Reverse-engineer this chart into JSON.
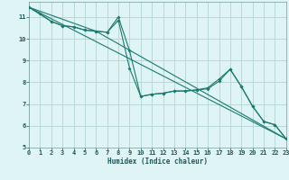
{
  "background_color": "#dff4f4",
  "grid_color": "#b8d8d8",
  "line_color": "#1a7a6e",
  "xlabel": "Humidex (Indice chaleur)",
  "xlim": [
    0,
    23
  ],
  "ylim": [
    5,
    11.7
  ],
  "yticks": [
    5,
    6,
    7,
    8,
    9,
    10,
    11
  ],
  "xticks": [
    0,
    1,
    2,
    3,
    4,
    5,
    6,
    7,
    8,
    9,
    10,
    11,
    12,
    13,
    14,
    15,
    16,
    17,
    18,
    19,
    20,
    21,
    22,
    23
  ],
  "series": [
    {
      "x": [
        0,
        1,
        2,
        3,
        4,
        5,
        6,
        7,
        8,
        9,
        10,
        11,
        12,
        13,
        14,
        15,
        16,
        17,
        18,
        19,
        20,
        21,
        22,
        23
      ],
      "y": [
        11.45,
        11.15,
        10.8,
        10.6,
        10.55,
        10.4,
        10.35,
        10.3,
        10.85,
        8.65,
        7.35,
        7.45,
        7.5,
        7.6,
        7.6,
        7.65,
        7.75,
        8.15,
        8.6,
        7.8,
        6.9,
        6.2,
        6.05,
        5.4
      ],
      "has_markers": true
    },
    {
      "x": [
        0,
        2,
        3,
        4,
        5,
        6,
        7,
        8,
        9,
        10,
        11,
        12,
        13,
        14,
        15,
        16,
        17,
        18,
        19,
        20,
        21,
        22,
        23
      ],
      "y": [
        11.45,
        10.8,
        10.6,
        10.55,
        10.4,
        10.35,
        10.3,
        11.0,
        9.45,
        7.35,
        7.45,
        7.5,
        7.6,
        7.6,
        7.65,
        7.7,
        8.05,
        8.6,
        7.8,
        6.9,
        6.2,
        6.05,
        5.4
      ],
      "has_markers": true
    },
    {
      "x": [
        0,
        23
      ],
      "y": [
        11.45,
        5.4
      ],
      "has_markers": false
    },
    {
      "x": [
        0,
        6,
        23
      ],
      "y": [
        11.45,
        10.35,
        5.4
      ],
      "has_markers": false
    }
  ]
}
